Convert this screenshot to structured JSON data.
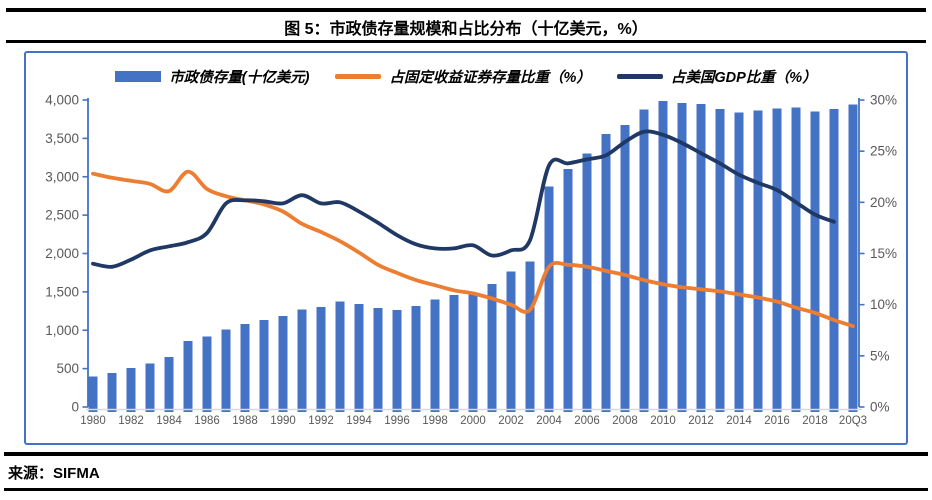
{
  "page": {
    "title": "图 5：市政债存量规模和占比分布（十亿美元，%）",
    "source": "来源：SIFMA"
  },
  "colors": {
    "bar_blue": "#4472C4",
    "line_orange": "#ED7D31",
    "line_navy": "#1F3864",
    "axis_blue": "#4472C4",
    "axis_gray": "#D9D9D9",
    "tick_text": "#595959",
    "rule_black": "#000000"
  },
  "chart_data": {
    "type": "bar",
    "subtype": "combo-bar-line-dual-axis",
    "title": "图 5：市政债存量规模和占比分布（十亿美元，%）",
    "grid": false,
    "legend_position": "top-center",
    "categories": [
      "1980",
      "1981",
      "1982",
      "1983",
      "1984",
      "1985",
      "1986",
      "1987",
      "1988",
      "1989",
      "1990",
      "1991",
      "1992",
      "1993",
      "1994",
      "1995",
      "1996",
      "1997",
      "1998",
      "1999",
      "2000",
      "2001",
      "2002",
      "2003",
      "2004",
      "2005",
      "2006",
      "2007",
      "2008",
      "2009",
      "2010",
      "2011",
      "2012",
      "2013",
      "2014",
      "2015",
      "2016",
      "2017",
      "2018",
      "2019",
      "20Q3"
    ],
    "x_shown_tick_labels": [
      "1980",
      "1982",
      "1984",
      "1986",
      "1988",
      "1990",
      "1992",
      "1994",
      "1996",
      "1998",
      "2000",
      "2002",
      "2004",
      "2006",
      "2008",
      "2010",
      "2012",
      "2014",
      "2016",
      "2018",
      "20Q3"
    ],
    "left_axis": {
      "min": 0,
      "max": 4000,
      "step": 500,
      "tick_labels": [
        "0",
        "500",
        "1,000",
        "1,500",
        "2,000",
        "2,500",
        "3,000",
        "3,500",
        "4,000"
      ]
    },
    "right_axis": {
      "min": 0,
      "max": 30,
      "step": 5,
      "tick_labels": [
        "0%",
        "5%",
        "10%",
        "15%",
        "20%",
        "25%",
        "30%"
      ]
    },
    "series": [
      {
        "name": "市政债存量(十亿美元)",
        "type": "bar",
        "axis": "left",
        "color": "#4472C4",
        "values": [
          399,
          444,
          508,
          569,
          651,
          858,
          920,
          1010,
          1082,
          1135,
          1184,
          1272,
          1303,
          1377,
          1341,
          1293,
          1261,
          1319,
          1402,
          1457,
          1480,
          1600,
          1763,
          1898,
          2871,
          3103,
          3303,
          3560,
          3674,
          3875,
          3990,
          3960,
          3950,
          3885,
          3835,
          3865,
          3890,
          3900,
          3848,
          3885,
          3943
        ]
      },
      {
        "name": "占固定收益证券存量比重（%）",
        "type": "line",
        "axis": "right",
        "color": "#ED7D31",
        "values": [
          22.8,
          22.4,
          22.1,
          21.8,
          21.1,
          23.0,
          21.3,
          20.6,
          20.2,
          19.8,
          19.1,
          17.9,
          17.1,
          16.2,
          15.1,
          13.9,
          13.1,
          12.4,
          11.9,
          11.4,
          11.1,
          10.6,
          10.0,
          9.5,
          13.7,
          13.9,
          13.7,
          13.3,
          12.9,
          12.4,
          12.0,
          11.7,
          11.5,
          11.3,
          11.0,
          10.7,
          10.3,
          9.7,
          9.2,
          8.5,
          7.9
        ]
      },
      {
        "name": "占美国GDP比重（%）",
        "type": "line",
        "axis": "right",
        "color": "#1F3864",
        "values": [
          14.0,
          13.7,
          14.4,
          15.3,
          15.7,
          16.1,
          17.0,
          19.9,
          20.2,
          20.1,
          19.9,
          20.7,
          19.9,
          20.0,
          19.1,
          18.0,
          16.8,
          15.9,
          15.5,
          15.5,
          15.8,
          14.8,
          15.3,
          16.3,
          23.6,
          23.8,
          24.2,
          24.6,
          25.9,
          26.9,
          26.6,
          25.8,
          24.8,
          23.8,
          22.7,
          21.9,
          21.2,
          20.0,
          18.8,
          18.1,
          null
        ]
      }
    ]
  }
}
